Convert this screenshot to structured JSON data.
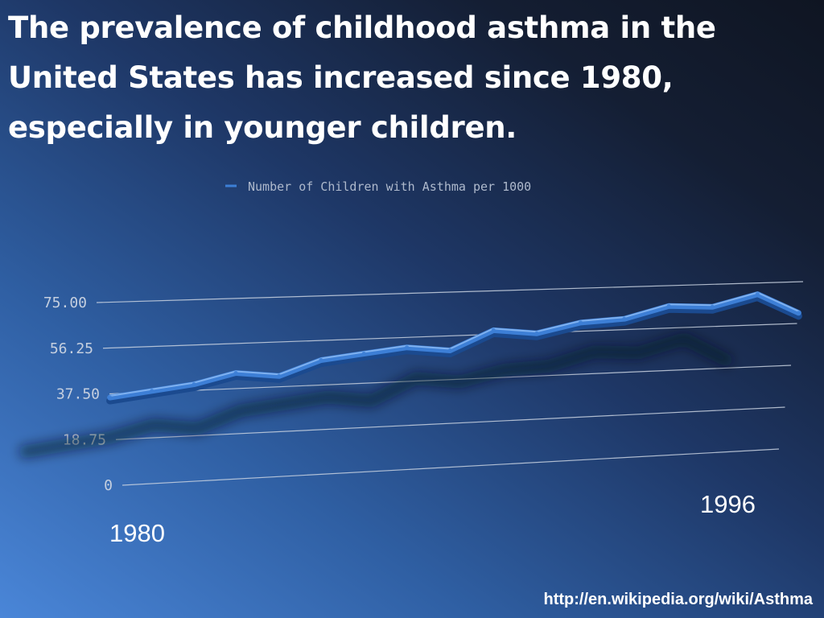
{
  "slide": {
    "title": "The prevalence of childhood asthma in the United States has increased since 1980, especially in younger children.",
    "source_link": "http://en.wikipedia.org/wiki/Asthma",
    "year_start_label": "1980",
    "year_end_label": "1996"
  },
  "chart_data": {
    "type": "line",
    "title": "",
    "xlabel": "",
    "ylabel": "",
    "legend_position": "top",
    "grid": true,
    "style": "3d",
    "ylim": [
      0,
      75
    ],
    "y_ticks": [
      "0",
      "18.75",
      "37.50",
      "56.25",
      "75.00"
    ],
    "x": [
      1980,
      1981,
      1982,
      1983,
      1984,
      1985,
      1986,
      1987,
      1988,
      1989,
      1990,
      1991,
      1992,
      1993,
      1994,
      1995,
      1996
    ],
    "series": [
      {
        "name": "Number of Children with Asthma per 1000",
        "color": "#3d7fd6",
        "values": [
          36,
          38,
          40,
          44,
          42,
          48,
          50,
          52,
          50,
          58,
          56,
          60,
          61,
          66,
          65,
          70,
          61
        ]
      }
    ]
  }
}
